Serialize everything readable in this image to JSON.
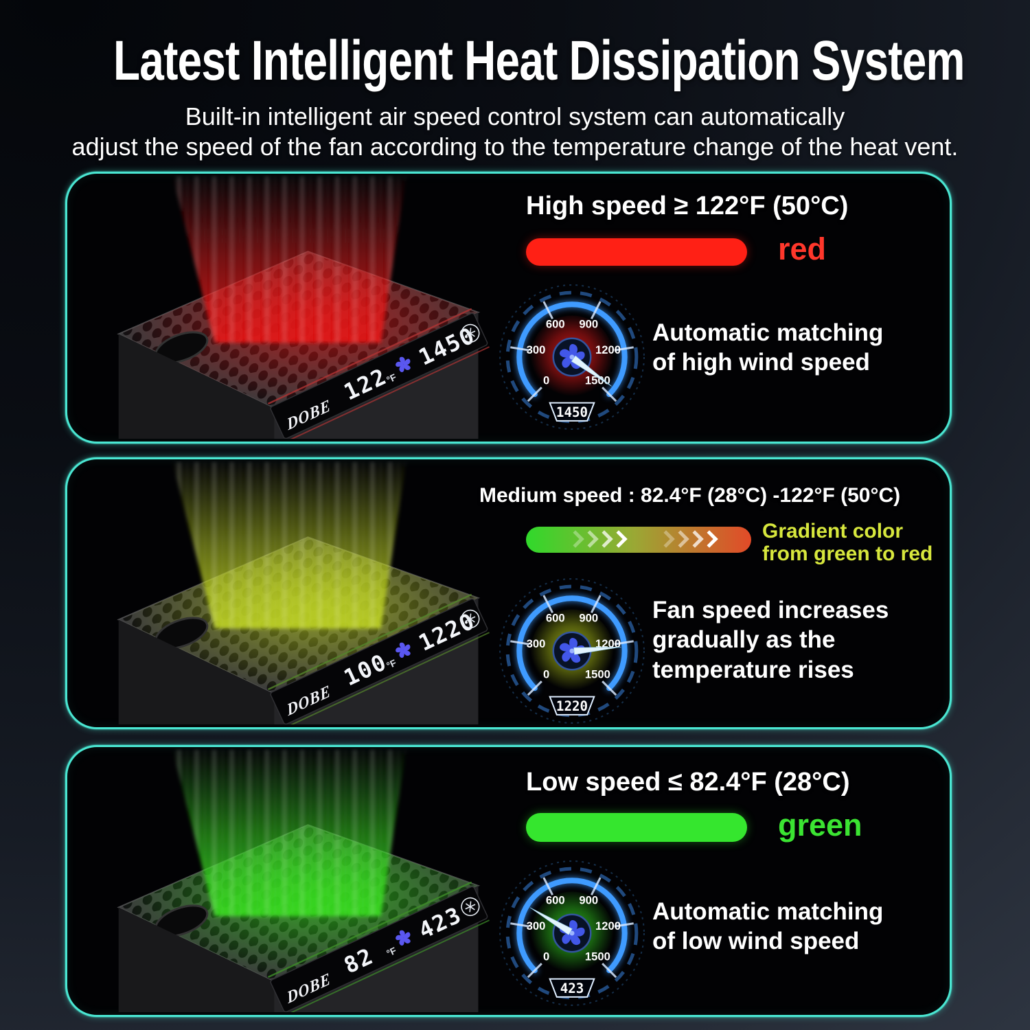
{
  "page": {
    "title": "Latest Intelligent Heat Dissipation System",
    "subtitle_lines": [
      "Built-in intelligent air speed control system can automatically",
      "adjust the speed of the fan according to the temperature change of the heat vent."
    ],
    "panel_border_color": "#4ae6d2"
  },
  "display": {
    "brand": "DOBE",
    "temp_unit": "°F"
  },
  "gauge": {
    "ticks": [
      "0",
      "300",
      "600",
      "900",
      "1200",
      "1500"
    ],
    "arc_color": "#3f9bff"
  },
  "panels": [
    {
      "name": "high-speed",
      "headline": "High speed ≥ 122°F (50°C)",
      "bar_label": "red",
      "bar_color": "#ff2015",
      "bar_label_color": "#ff372b",
      "description_lines": [
        "Automatic matching",
        "of high wind speed"
      ],
      "display_temp": "122",
      "display_rpm": "1450",
      "gauge_readout": "1450",
      "gauge_needle_deg": 36,
      "gauge_center_color": "#c01616",
      "beam_color": "#e51212",
      "accent_color": "#b03434"
    },
    {
      "name": "medium-speed",
      "headline": "Medium speed : 82.4°F (28°C) -122°F (50°C)",
      "bar_label_lines": [
        "Gradient color",
        "from green to red"
      ],
      "bar_label_color": "#d7e73d",
      "bar_gradient": [
        "#30d92b",
        "#9aa834",
        "#e24a28"
      ],
      "description_lines": [
        "Fan speed increases",
        "gradually as the",
        "temperature rises"
      ],
      "display_temp": "100",
      "display_rpm": "1220",
      "gauge_readout": "1220",
      "gauge_needle_deg": -5,
      "gauge_center_color": "#8f9f14",
      "beam_color": "#bdd21f",
      "accent_color": "#55862c"
    },
    {
      "name": "low-speed",
      "headline": "Low speed ≤ 82.4°F (28°C)",
      "bar_label": "green",
      "bar_color": "#35e62e",
      "bar_label_color": "#3be432",
      "description_lines": [
        "Automatic matching",
        "of low wind speed"
      ],
      "display_temp": "82",
      "display_rpm": "423",
      "gauge_readout": "423",
      "gauge_needle_deg": 211,
      "gauge_center_color": "#2aa81a",
      "beam_color": "#34dd1b",
      "accent_color": "#3f8f2a"
    }
  ]
}
